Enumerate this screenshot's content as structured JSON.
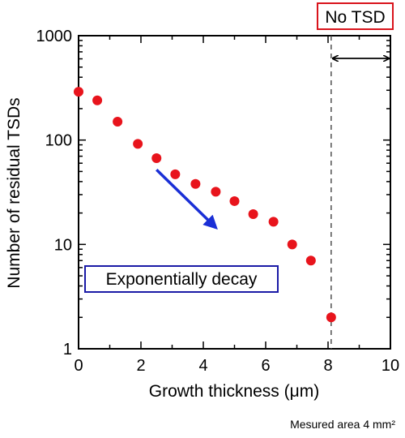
{
  "chart_data": {
    "type": "scatter",
    "xlabel": "Growth thickness (μm)",
    "ylabel": "Number of residual TSDs",
    "xlim": [
      0,
      10
    ],
    "ylim": [
      1,
      1000
    ],
    "y_scale": "log",
    "x_ticks": [
      0,
      2,
      4,
      6,
      8,
      10
    ],
    "x_tick_labels": [
      "0",
      "2",
      "4",
      "6",
      "8",
      "10"
    ],
    "y_ticks": [
      1,
      10,
      100,
      1000
    ],
    "y_tick_labels": [
      "1",
      "10",
      "100",
      "1000"
    ],
    "grid": false,
    "marker_color": "#e8141c",
    "series": [
      {
        "x": [
          0,
          0.6,
          1.25,
          1.9,
          2.5,
          3.1,
          3.75,
          4.4,
          5.0,
          5.6,
          6.25,
          6.85,
          7.45,
          8.1
        ],
        "y": [
          290,
          240,
          150,
          92,
          67,
          47,
          38,
          32,
          26,
          19.5,
          16.5,
          10,
          7,
          2
        ]
      }
    ],
    "annotations": {
      "no_tsd_label": "No TSD",
      "no_tsd_border_color": "#d9141c",
      "boundary_x": 8.1,
      "decay_label": "Exponentially decay",
      "decay_border_color": "#1a1aa6",
      "arrow_color": "#1a2fd6",
      "arrow_from": [
        2.5,
        52
      ],
      "arrow_to": [
        4.4,
        14.5
      ],
      "area_note": "Mesured area 4 mm²"
    }
  }
}
